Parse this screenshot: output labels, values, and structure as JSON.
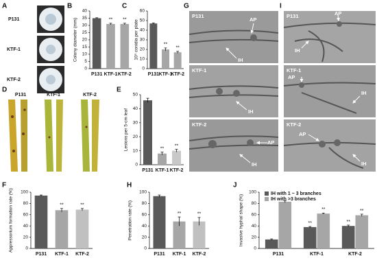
{
  "chart_data": [
    {
      "type": "bar",
      "panel_label": "B",
      "ylabel": "Colony diameter (mm)",
      "categories": [
        "P131",
        "KTF-1",
        "KTF-2"
      ],
      "values": [
        35,
        31,
        31
      ],
      "errors": [
        0.3,
        0.5,
        0.5
      ],
      "annotations": [
        null,
        "**",
        "**"
      ],
      "colors": [
        "#595959",
        "#a6a6a6",
        "#a6a6a6"
      ],
      "ylim": [
        0,
        40
      ],
      "yticks": [
        0,
        5,
        10,
        15,
        20,
        25,
        30,
        35,
        40
      ]
    },
    {
      "type": "bar",
      "panel_label": "C",
      "ylabel": "10⁵ conidia per plate",
      "categories": [
        "P131",
        "KTF-1",
        "KTF-2"
      ],
      "values": [
        47,
        20,
        17
      ],
      "errors": [
        0.5,
        1.5,
        1
      ],
      "annotations": [
        null,
        "**",
        "**"
      ],
      "colors": [
        "#595959",
        "#a6a6a6",
        "#a6a6a6"
      ],
      "ylim": [
        0,
        60
      ],
      "yticks": [
        0,
        10,
        20,
        30,
        40,
        50,
        60
      ]
    },
    {
      "type": "bar",
      "panel_label": "E",
      "ylabel": "Lesions per 5-cm leaf",
      "categories": [
        "P131",
        "KTF-1",
        "KTF-2"
      ],
      "values": [
        46,
        8,
        10
      ],
      "errors": [
        1.5,
        1,
        1
      ],
      "annotations": [
        null,
        "**",
        "**"
      ],
      "colors": [
        "#595959",
        "#a6a6a6",
        "#c8c8c8"
      ],
      "ylim": [
        0,
        50
      ],
      "yticks": [
        0,
        10,
        20,
        30,
        40,
        50
      ]
    },
    {
      "type": "bar",
      "panel_label": "F",
      "ylabel": "Appressorium formation rate (%)",
      "categories": [
        "P131",
        "KTF-1",
        "KTF-2"
      ],
      "values": [
        94,
        68,
        69
      ],
      "errors": [
        1,
        3,
        2
      ],
      "annotations": [
        null,
        "**",
        "**"
      ],
      "colors": [
        "#595959",
        "#a6a6a6",
        "#c0c0c0"
      ],
      "ylim": [
        0,
        100
      ],
      "yticks": [
        0,
        20,
        40,
        60,
        80,
        100
      ]
    },
    {
      "type": "bar",
      "panel_label": "H",
      "ylabel": "Penetration rate (%)",
      "categories": [
        "P131",
        "KTF-1",
        "KTF-2"
      ],
      "values": [
        93,
        48,
        48
      ],
      "errors": [
        2,
        8,
        7
      ],
      "annotations": [
        null,
        "**",
        "**"
      ],
      "colors": [
        "#595959",
        "#a6a6a6",
        "#c0c0c0"
      ],
      "ylim": [
        0,
        100
      ],
      "yticks": [
        0,
        20,
        40,
        60,
        80,
        100
      ]
    },
    {
      "type": "grouped_bar",
      "panel_label": "J",
      "ylabel": "Invasive hyphal shape (%)",
      "categories": [
        "P131",
        "KTF-1",
        "KTF-2"
      ],
      "series": [
        {
          "name": "IH with 1 ~ 3 branches",
          "color": "#595959",
          "values": [
            16,
            38,
            40
          ],
          "errors": [
            1,
            1,
            1.5
          ],
          "annotations": [
            null,
            "**",
            "**"
          ]
        },
        {
          "name": "IH with >3 branches",
          "color": "#a6a6a6",
          "values": [
            83,
            62,
            59
          ],
          "errors": [
            1.5,
            1,
            2
          ],
          "annotations": [
            null,
            "**",
            "**"
          ]
        }
      ],
      "ylim": [
        0,
        100
      ],
      "yticks": [
        0,
        20,
        40,
        60,
        80,
        100
      ],
      "legend": "top-left"
    }
  ],
  "photos": {
    "A": {
      "panel_label": "A",
      "labels": [
        "P131",
        "KTF-1",
        "KTF-2"
      ]
    },
    "D": {
      "panel_label": "D",
      "labels": [
        "P131",
        "KTF-1",
        "KTF-2"
      ]
    },
    "G": {
      "panel_label": "G",
      "rows": [
        {
          "strain": "P131",
          "markers": [
            "AP",
            "IH"
          ]
        },
        {
          "strain": "KTF-1",
          "markers": [
            "IH"
          ]
        },
        {
          "strain": "KTF-2",
          "markers": [
            "AP",
            "IH"
          ]
        }
      ]
    },
    "I": {
      "panel_label": "I",
      "rows": [
        {
          "strain": "P131",
          "markers": [
            "AP",
            "IH"
          ]
        },
        {
          "strain": "KTF-1",
          "markers": [
            "AP",
            "IH"
          ]
        },
        {
          "strain": "KTF-2",
          "markers": [
            "AP",
            "IH"
          ]
        }
      ]
    }
  }
}
